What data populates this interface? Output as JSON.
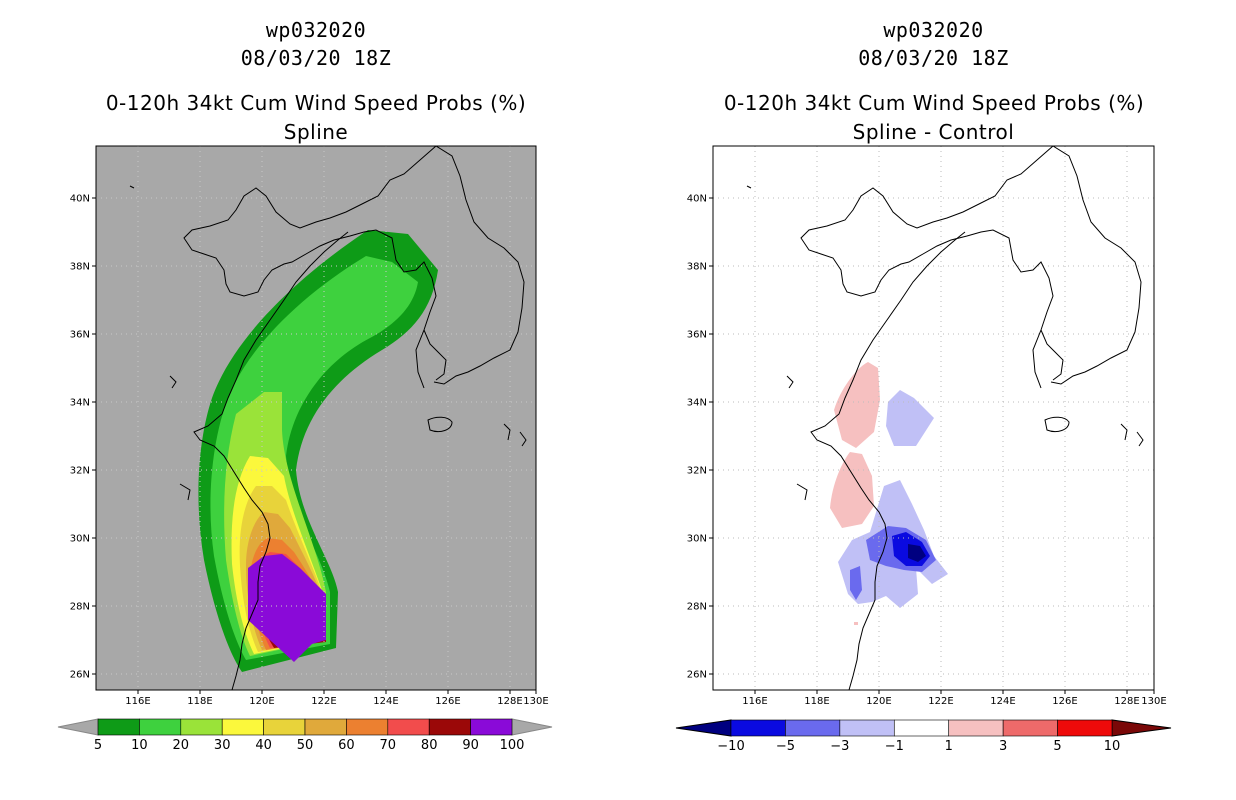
{
  "left": {
    "storm": "wp032020",
    "time": "08/03/20 18Z",
    "product": "0-120h 34kt Cum Wind Speed Probs (%)",
    "variant": "Spline",
    "colorbar": {
      "labels": [
        "5",
        "10",
        "20",
        "30",
        "40",
        "50",
        "60",
        "70",
        "80",
        "90",
        "100"
      ],
      "colors": [
        "#0e9b17",
        "#3ed13e",
        "#9ae339",
        "#fbf83c",
        "#e8d33a",
        "#e0a93b",
        "#ec8030",
        "#f24c4c",
        "#9b0808",
        "#8a0ad8"
      ]
    }
  },
  "right": {
    "storm": "wp032020",
    "time": "08/03/20 18Z",
    "product": "0-120h 34kt Cum Wind Speed Probs (%)",
    "variant": "Spline - Control",
    "colorbar": {
      "labels": [
        "−10",
        "−5",
        "−3",
        "−1",
        "1",
        "3",
        "5",
        "10"
      ],
      "colors": [
        "#0a0ae0",
        "#6a6aee",
        "#c0c0f6",
        "#ffffff",
        "#f6c0c0",
        "#ee6a6a",
        "#ee0a0a"
      ]
    }
  },
  "axes": {
    "lat_labels": [
      "40N",
      "38N",
      "36N",
      "34N",
      "32N",
      "30N",
      "28N",
      "26N"
    ],
    "lon_labels": [
      "116E",
      "118E",
      "120E",
      "122E",
      "124E",
      "126E",
      "128E",
      "130E"
    ]
  },
  "palette": {
    "map_gray": "#a8a8a8",
    "grid": "#bbbbbb"
  }
}
